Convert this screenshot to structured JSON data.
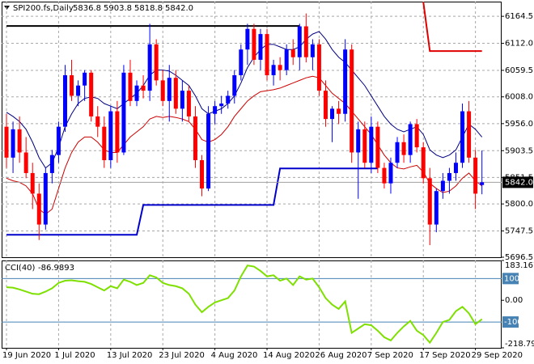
{
  "chart_data": {
    "type": "candlestick",
    "symbol": "SPI200.fs,Daily",
    "ohlc_labels": [
      "5836.8",
      "5903.8",
      "5818.8",
      "5842.0"
    ],
    "categories": [
      "19 Jun 2020",
      null,
      null,
      null,
      null,
      null,
      null,
      null,
      "1 Jul 2020",
      null,
      null,
      null,
      null,
      null,
      null,
      null,
      "13 Jul 2020",
      null,
      null,
      null,
      null,
      null,
      null,
      null,
      "23 Jul 2020",
      null,
      null,
      null,
      null,
      null,
      null,
      null,
      "4 Aug 2020",
      null,
      null,
      null,
      null,
      null,
      null,
      null,
      "14 Aug 2020",
      null,
      null,
      null,
      null,
      null,
      null,
      null,
      "26 Aug 2020",
      null,
      null,
      null,
      null,
      null,
      null,
      null,
      "7 Sep 2020",
      null,
      null,
      null,
      null,
      null,
      null,
      null,
      "17 Sep 2020",
      null,
      null,
      null,
      null,
      null,
      null,
      null,
      "29 Sep 2020",
      null
    ],
    "open": [
      5950,
      5890,
      5945,
      5900,
      5860,
      5820,
      5760,
      5860,
      5895,
      5950,
      6050,
      6010,
      6030,
      6055,
      5970,
      5950,
      5885,
      5980,
      5900,
      6055,
      6000,
      6030,
      6020,
      6110,
      6040,
      6000,
      6045,
      5985,
      6020,
      5970,
      5885,
      5830,
      5975,
      5990,
      5995,
      6010,
      6050,
      6100,
      6140,
      6080,
      6130,
      6050,
      6070,
      6060,
      6100,
      6085,
      6145,
      6085,
      6110,
      6020,
      5965,
      5985,
      5975,
      6100,
      5900,
      5945,
      5880,
      5950,
      5870,
      5840,
      5880,
      5920,
      5895,
      5955,
      5910,
      5850,
      5760,
      5825,
      5845,
      5860,
      5880,
      5980,
      5890,
      5836.8
    ],
    "high": [
      5975,
      5960,
      5970,
      5930,
      5880,
      5840,
      5870,
      5905,
      5960,
      6070,
      6080,
      6040,
      6060,
      6060,
      5990,
      5970,
      5990,
      6000,
      6070,
      6080,
      6040,
      6050,
      6150,
      6120,
      6060,
      6070,
      6060,
      6040,
      6030,
      5990,
      5895,
      5990,
      6000,
      6010,
      6020,
      6060,
      6110,
      6150,
      6150,
      6140,
      6140,
      6080,
      6085,
      6110,
      6120,
      6150,
      6170,
      6120,
      6120,
      6040,
      5990,
      6000,
      6120,
      6110,
      5960,
      5960,
      5970,
      5960,
      5880,
      5890,
      5930,
      5935,
      5960,
      5965,
      5920,
      5870,
      5830,
      5860,
      5870,
      5900,
      5995,
      6000,
      5905,
      5903.8
    ],
    "low": [
      5870,
      5860,
      5880,
      5850,
      5790,
      5730,
      5750,
      5840,
      5880,
      5940,
      6000,
      5990,
      6000,
      5960,
      5930,
      5870,
      5870,
      5880,
      5895,
      5990,
      5990,
      6005,
      6000,
      6030,
      5990,
      5960,
      5975,
      5960,
      5960,
      5870,
      5815,
      5825,
      5955,
      5975,
      5985,
      5995,
      6040,
      6070,
      6070,
      6060,
      6040,
      6030,
      6040,
      6050,
      6070,
      6060,
      6075,
      6060,
      6010,
      5950,
      5920,
      5955,
      5960,
      5880,
      5810,
      5870,
      5860,
      5860,
      5830,
      5820,
      5870,
      5880,
      5880,
      5900,
      5840,
      5720,
      5745,
      5810,
      5820,
      5845,
      5870,
      5880,
      5790,
      5818.8
    ],
    "close": [
      5890,
      5945,
      5900,
      5860,
      5820,
      5760,
      5860,
      5895,
      5950,
      6050,
      6010,
      6030,
      6055,
      5970,
      5950,
      5885,
      5980,
      5900,
      6055,
      6000,
      6030,
      6020,
      6110,
      6040,
      6000,
      6045,
      5985,
      6020,
      5970,
      5885,
      5830,
      5975,
      5990,
      5995,
      6010,
      6050,
      6100,
      6140,
      6080,
      6130,
      6050,
      6070,
      6060,
      6100,
      6085,
      6145,
      6085,
      6110,
      6020,
      5965,
      5985,
      5975,
      6100,
      5900,
      5945,
      5880,
      5950,
      5870,
      5840,
      5880,
      5920,
      5895,
      5955,
      5910,
      5850,
      5760,
      5825,
      5845,
      5860,
      5880,
      5980,
      5890,
      5820,
      5842.0
    ],
    "bull_color": "#0000ff",
    "bear_color": "#ff0000",
    "ylim": [
      5696.5,
      6193
    ],
    "yticks": [
      6164.5,
      {
        "value": 6112,
        "label": "6112.0"
      },
      6059.5,
      {
        "value": 6008,
        "label": "6008.0"
      },
      {
        "value": 5956,
        "label": "5956.0"
      },
      5903.5,
      5851.5,
      {
        "value": 5800,
        "label": "5800.0"
      },
      5747.5,
      5696.5
    ],
    "grid": true,
    "price_line": {
      "value": 5842.0,
      "label": "5842.0"
    },
    "lines": [
      {
        "color": "#000080",
        "values": [
          5978,
          5970,
          5960,
          5945,
          5920,
          5890,
          5870,
          5880,
          5910,
          5950,
          5975,
          5995,
          6005,
          6008,
          6005,
          5995,
          5990,
          5985,
          5995,
          6005,
          6015,
          6030,
          6050,
          6060,
          6060,
          6058,
          6050,
          6040,
          6030,
          6010,
          5985,
          5975,
          5980,
          5985,
          5995,
          6010,
          6035,
          6065,
          6085,
          6100,
          6110,
          6110,
          6105,
          6100,
          6100,
          6105,
          6120,
          6130,
          6135,
          6120,
          6100,
          6085,
          6075,
          6060,
          6045,
          6030,
          6010,
          5990,
          5970,
          5955,
          5945,
          5940,
          5945,
          5950,
          5935,
          5905,
          5895,
          5890,
          5895,
          5905,
          5930,
          5955,
          5945,
          5930
        ]
      },
      {
        "color": "#cc0000",
        "values": [
          5850,
          5845,
          5842,
          5835,
          5820,
          5790,
          5780,
          5790,
          5830,
          5870,
          5900,
          5920,
          5930,
          5930,
          5920,
          5905,
          5900,
          5900,
          5915,
          5930,
          5940,
          5950,
          5965,
          5970,
          5968,
          5970,
          5968,
          5965,
          5960,
          5945,
          5925,
          5920,
          5925,
          5935,
          5950,
          5970,
          5985,
          6000,
          6010,
          6018,
          6020,
          6022,
          6025,
          6030,
          6035,
          6040,
          6045,
          6048,
          6045,
          6030,
          6015,
          6005,
          5995,
          5980,
          5965,
          5950,
          5935,
          5915,
          5895,
          5880,
          5870,
          5868,
          5872,
          5875,
          5862,
          5840,
          5830,
          5822,
          5825,
          5835,
          5850,
          5860,
          5845,
          5835
        ]
      },
      {
        "color": "#0000cc",
        "values": [
          5740,
          5740,
          5740,
          5740,
          5740,
          5740,
          5740,
          5740,
          5740,
          5740,
          5740,
          5740,
          5740,
          5740,
          5740,
          5740,
          5740,
          5740,
          5740,
          5740,
          5740,
          5798,
          5798,
          5798,
          5798,
          5798,
          5798,
          5798,
          5798,
          5798,
          5798,
          5798,
          5798,
          5798,
          5798,
          5798,
          5798,
          5798,
          5798,
          5798,
          5798,
          5798,
          5869,
          5869,
          5869,
          5869,
          5869,
          5869,
          5869,
          5869,
          5869,
          5869,
          5869,
          5869,
          5869,
          5869,
          5869,
          5869,
          null,
          null,
          null,
          null,
          null,
          null,
          null,
          null,
          null,
          null,
          null,
          null,
          null,
          null,
          null,
          null
        ]
      },
      {
        "color": "#000000",
        "values": [
          6145.7,
          6145.7,
          6145.7,
          6145.7,
          6145.7,
          6145.7,
          6145.7,
          6145.7,
          6145.7,
          6145.7,
          6145.7,
          6145.7,
          6145.7,
          6145.7,
          6145.7,
          6145.7,
          6145.7,
          6145.7,
          6145.7,
          6145.7,
          6145.7,
          6145.7,
          6145.7,
          6145.7,
          6145.7,
          6145.7,
          6145.7,
          6145.7,
          6145.7,
          6145.7,
          6145.7,
          6145.7,
          6145.7,
          6145.7,
          6145.7,
          6145.7,
          6145.7,
          6145.7,
          6145.7,
          6145.7,
          6145.7,
          6145.7,
          6145.7,
          6145.7,
          6145.7,
          6145.7,
          null,
          null,
          null,
          null,
          null,
          null,
          null,
          null,
          null,
          null,
          null,
          null,
          null,
          null,
          null,
          null,
          null,
          null,
          null,
          null,
          null,
          null,
          null,
          null,
          null,
          null,
          null,
          null
        ]
      },
      {
        "color": "#e00000",
        "values": [
          null,
          null,
          null,
          null,
          null,
          null,
          null,
          null,
          null,
          null,
          null,
          null,
          null,
          null,
          null,
          null,
          null,
          null,
          null,
          null,
          null,
          null,
          null,
          null,
          null,
          null,
          null,
          null,
          null,
          null,
          null,
          null,
          null,
          null,
          null,
          null,
          null,
          null,
          null,
          null,
          null,
          null,
          null,
          null,
          null,
          null,
          null,
          null,
          null,
          null,
          null,
          null,
          null,
          null,
          null,
          null,
          null,
          null,
          null,
          null,
          null,
          null,
          null,
          null,
          6192,
          6097,
          6097,
          6097,
          6097,
          6097,
          6097,
          6097,
          6097,
          6097
        ]
      }
    ],
    "indicator": {
      "type": "line",
      "label": "CCI(40)",
      "color": "#7ee000",
      "values": [
        60,
        58,
        50,
        40,
        30,
        28,
        40,
        55,
        80,
        90,
        92,
        88,
        85,
        75,
        60,
        45,
        65,
        55,
        95,
        85,
        70,
        80,
        115,
        105,
        80,
        70,
        65,
        55,
        30,
        -20,
        -55,
        -30,
        -10,
        0,
        10,
        45,
        110,
        160,
        155,
        135,
        110,
        115,
        90,
        100,
        70,
        110,
        95,
        100,
        60,
        10,
        -20,
        -40,
        -5,
        -150,
        -130,
        -110,
        -115,
        -140,
        -170,
        -185,
        -150,
        -120,
        -95,
        -140,
        -160,
        -195,
        -150,
        -100,
        -90,
        -50,
        -30,
        -60,
        -110,
        -86.9893
      ],
      "ylim": [
        -218.799,
        183.1673
      ],
      "yticks": [
        183.1673,
        {
          "value": 0,
          "label": "0.00"
        },
        -218.799
      ],
      "levels": [
        100,
        -100
      ],
      "level_color": "#4682b4"
    }
  }
}
